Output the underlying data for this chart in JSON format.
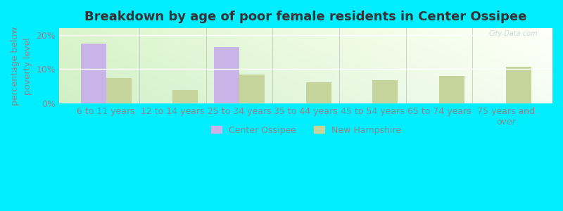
{
  "title": "Breakdown by age of poor female residents in Center Ossipee",
  "categories": [
    "6 to 11 years",
    "12 to 14 years",
    "25 to 34 years",
    "35 to 44 years",
    "45 to 54 years",
    "65 to 74 years",
    "75 years and\nover"
  ],
  "center_ossipee": [
    17.5,
    0,
    16.5,
    0,
    0,
    0,
    0
  ],
  "new_hampshire": [
    7.5,
    4.0,
    8.5,
    6.2,
    6.8,
    8.0,
    10.8
  ],
  "center_ossipee_color": "#c9b4e8",
  "new_hampshire_color": "#c4d49a",
  "background_outer": "#00eeff",
  "ylim": [
    0,
    22
  ],
  "yticks": [
    0,
    10,
    20
  ],
  "ytick_labels": [
    "0%",
    "10%",
    "20%"
  ],
  "ylabel": "percentage below\npoverty level",
  "bar_width": 0.38,
  "legend_labels": [
    "Center Ossipee",
    "New Hampshire"
  ],
  "title_fontsize": 13,
  "label_fontsize": 9,
  "tick_fontsize": 9,
  "text_color": "#888888",
  "title_color": "#333333"
}
